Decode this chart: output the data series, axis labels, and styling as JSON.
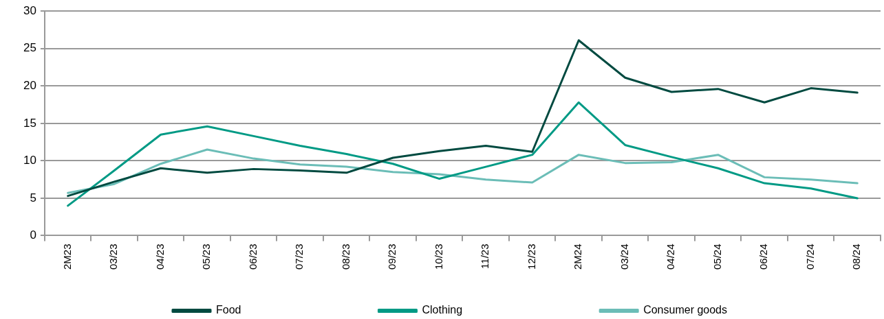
{
  "chart_data": {
    "type": "line",
    "categories": [
      "2M23",
      "03/23",
      "04/23",
      "05/23",
      "06/23",
      "07/23",
      "08/23",
      "09/23",
      "10/23",
      "11/23",
      "12/23",
      "2M24",
      "03/24",
      "04/24",
      "05/24",
      "06/24",
      "07/24",
      "08/24"
    ],
    "series": [
      {
        "name": "Food",
        "color": "#004a40",
        "values": [
          5.3,
          7.2,
          9.0,
          8.4,
          8.9,
          8.7,
          8.4,
          10.4,
          11.3,
          12.0,
          11.2,
          26.1,
          21.1,
          19.2,
          19.6,
          17.8,
          19.7,
          19.1
        ]
      },
      {
        "name": "Clothing",
        "color": "#009a85",
        "values": [
          4.0,
          8.7,
          13.5,
          14.6,
          13.3,
          12.0,
          10.9,
          9.6,
          7.6,
          9.2,
          10.8,
          17.8,
          12.1,
          10.5,
          9.0,
          7.0,
          6.3,
          5.0
        ]
      },
      {
        "name": "Consumer goods",
        "color": "#6bbdb7",
        "values": [
          5.7,
          6.9,
          9.6,
          11.5,
          10.3,
          9.5,
          9.2,
          8.5,
          8.2,
          7.5,
          7.1,
          10.8,
          9.7,
          9.8,
          10.8,
          7.8,
          7.5,
          7.0
        ]
      }
    ],
    "ylim": [
      0,
      30
    ],
    "yticks": [
      0,
      5,
      10,
      15,
      20,
      25,
      30
    ],
    "grid": "y",
    "legend": "bottom"
  }
}
